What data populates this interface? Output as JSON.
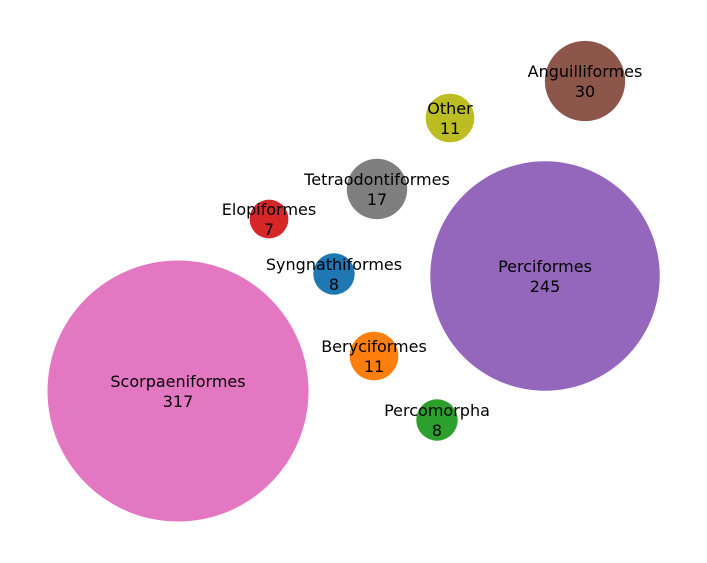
{
  "chart_data": {
    "type": "bubble",
    "title": "",
    "xlabel": "",
    "ylabel": "",
    "grid": false,
    "axes_visible": false,
    "legend": "none",
    "bubbles": [
      {
        "label": "Scorpaeniformes",
        "value": 317,
        "color": "#e377c2"
      },
      {
        "label": "Perciformes",
        "value": 245,
        "color": "#9467bd"
      },
      {
        "label": "Anguilliformes",
        "value": 30,
        "color": "#8c564b"
      },
      {
        "label": "Tetraodontiformes",
        "value": 17,
        "color": "#7f7f7f"
      },
      {
        "label": "Other",
        "value": 11,
        "color": "#bcbd22"
      },
      {
        "label": "Beryciformes",
        "value": 11,
        "color": "#ff7f0e"
      },
      {
        "label": "Syngnathiformes",
        "value": 8,
        "color": "#1f77b4"
      },
      {
        "label": "Percomorpha",
        "value": 8,
        "color": "#2ca02c"
      },
      {
        "label": "Elopiformes",
        "value": 7,
        "color": "#d62728"
      }
    ]
  }
}
